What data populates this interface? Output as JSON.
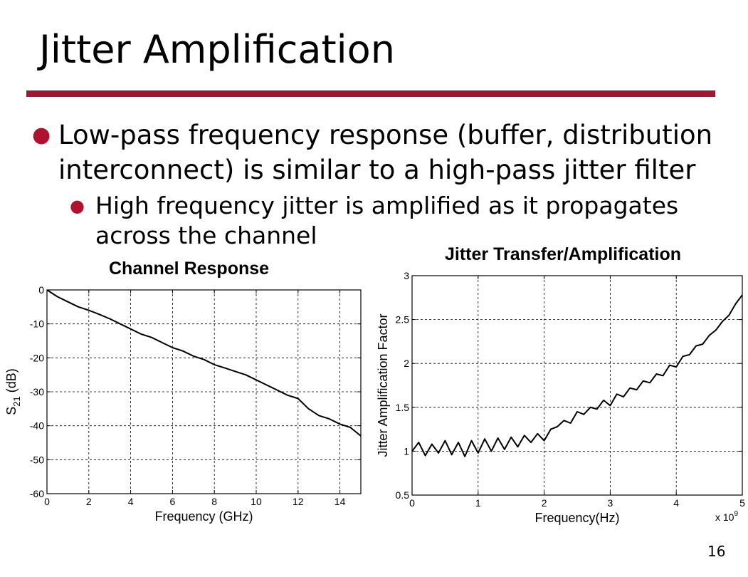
{
  "slide": {
    "title": "Jitter Amplification",
    "bullet1": "Low-pass frequency response (buffer, distribution interconnect) is similar to a high-pass jitter filter",
    "bullet2": "High frequency jitter is amplified as it propagates across the channel",
    "page_number": "16",
    "accent_color": "#a3162f"
  },
  "chart_data": [
    {
      "type": "line",
      "title": "Channel Response",
      "xlabel": "Frequency (GHz)",
      "ylabel_base": "S",
      "ylabel_sub": "21",
      "ylabel_unit": " (dB)",
      "xlim": [
        0,
        15
      ],
      "ylim": [
        -60,
        0
      ],
      "xticks": [
        0,
        2,
        4,
        6,
        8,
        10,
        12,
        14
      ],
      "yticks": [
        0,
        -10,
        -20,
        -30,
        -40,
        -50,
        -60
      ],
      "grid": true,
      "series": [
        {
          "x": [
            0,
            0.5,
            1,
            1.5,
            2,
            2.5,
            3,
            3.5,
            4,
            4.5,
            5,
            5.5,
            6,
            6.5,
            7,
            7.5,
            8,
            8.5,
            9,
            9.5,
            10,
            10.5,
            11,
            11.5,
            12,
            12.5,
            13,
            13.5,
            14,
            14.5,
            15
          ],
          "y": [
            0,
            -2,
            -3.5,
            -5,
            -6,
            -7.2,
            -8.5,
            -10,
            -11.5,
            -13,
            -14,
            -15.5,
            -17,
            -18,
            -19.5,
            -20.5,
            -22,
            -23,
            -24,
            -25,
            -26.5,
            -28,
            -29.5,
            -31,
            -32,
            -35,
            -37,
            -38,
            -39.5,
            -40.5,
            -43
          ]
        }
      ]
    },
    {
      "type": "line",
      "title": "Jitter Transfer/Amplification",
      "xlabel": "Frequency(Hz)",
      "ylabel": "Jitter Amplification Factor",
      "x_multiplier": "x 10",
      "x_multiplier_exp": "9",
      "xlim": [
        0,
        5
      ],
      "ylim": [
        0.5,
        3
      ],
      "xticks": [
        0,
        1,
        2,
        3,
        4,
        5
      ],
      "yticks": [
        0.5,
        1,
        1.5,
        2,
        2.5,
        3
      ],
      "ytick_labels": [
        "0.5",
        "1",
        "1.5",
        "2",
        "2.5",
        "3"
      ],
      "grid": true,
      "series": [
        {
          "x": [
            0,
            0.1,
            0.2,
            0.3,
            0.4,
            0.5,
            0.6,
            0.7,
            0.8,
            0.9,
            1.0,
            1.1,
            1.2,
            1.3,
            1.4,
            1.5,
            1.6,
            1.7,
            1.8,
            1.9,
            2.0,
            2.1,
            2.2,
            2.3,
            2.4,
            2.5,
            2.6,
            2.7,
            2.8,
            2.9,
            3.0,
            3.1,
            3.2,
            3.3,
            3.4,
            3.5,
            3.6,
            3.7,
            3.8,
            3.9,
            4.0,
            4.1,
            4.2,
            4.3,
            4.4,
            4.5,
            4.6,
            4.7,
            4.8,
            4.9,
            5.0
          ],
          "y": [
            1.0,
            1.1,
            0.95,
            1.08,
            0.98,
            1.12,
            0.96,
            1.1,
            0.94,
            1.12,
            0.98,
            1.14,
            1.0,
            1.15,
            1.02,
            1.16,
            1.05,
            1.18,
            1.1,
            1.2,
            1.12,
            1.25,
            1.28,
            1.35,
            1.32,
            1.45,
            1.42,
            1.5,
            1.48,
            1.58,
            1.52,
            1.65,
            1.62,
            1.72,
            1.7,
            1.8,
            1.78,
            1.88,
            1.86,
            1.98,
            1.96,
            2.08,
            2.1,
            2.2,
            2.22,
            2.32,
            2.38,
            2.48,
            2.55,
            2.68,
            2.78
          ]
        }
      ]
    }
  ]
}
